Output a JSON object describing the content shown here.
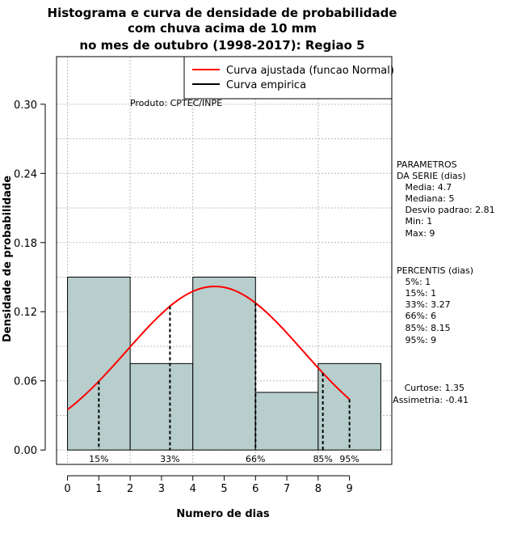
{
  "chart_data": {
    "type": "bar",
    "title_lines": [
      "Histograma e curva de densidade de probabilidade",
      "com chuva acima de 10 mm",
      "no mes de outubro (1998-2017): Regiao 5"
    ],
    "xlabel": "Numero de dias",
    "ylabel": "Densidade de probabilidade",
    "xlim": [
      -0.35,
      10.35
    ],
    "ylim": [
      -0.0125,
      0.3413
    ],
    "x_ticks": [
      0,
      1,
      2,
      3,
      4,
      5,
      6,
      7,
      8,
      9
    ],
    "y_ticks": [
      0.0,
      0.06,
      0.12,
      0.18,
      0.24,
      0.3
    ],
    "y_tick_labels": [
      "0.00",
      "0.06",
      "0.12",
      "0.18",
      "0.24",
      "0.30"
    ],
    "grid": true,
    "bins": [
      {
        "from": 0,
        "to": 2,
        "density": 0.15
      },
      {
        "from": 2,
        "to": 4,
        "density": 0.075
      },
      {
        "from": 4,
        "to": 6,
        "density": 0.15
      },
      {
        "from": 6,
        "to": 8,
        "density": 0.05
      },
      {
        "from": 8,
        "to": 10,
        "density": 0.075
      }
    ],
    "normal_curve": {
      "mean": 4.7,
      "sd": 2.81,
      "x_from": 0,
      "x_to": 9
    },
    "percentile_markers": [
      {
        "label": "15%",
        "x": 1
      },
      {
        "label": "33%",
        "x": 3.27
      },
      {
        "label": "66%",
        "x": 6
      },
      {
        "label": "85%",
        "x": 8.15
      },
      {
        "label": "95%",
        "x": 9
      }
    ],
    "legend": {
      "position": "top-right",
      "entries": [
        {
          "label": "Curva ajustada (funcao Normal)",
          "color": "#ff0000"
        },
        {
          "label": "Curva empirica",
          "color": "#000000"
        }
      ]
    },
    "product_label": "Produto: CPTEC/INPE",
    "params_block": [
      "PARAMETROS",
      "DA SERIE (dias)",
      "   Media: 4.7",
      "   Mediana: 5",
      "   Desvio padrao: 2.81",
      "   Min: 1",
      "   Max: 9"
    ],
    "percentis_block": [
      "PERCENTIS (dias)",
      "   5%: 1",
      "   15%: 1",
      "   33%: 3.27",
      "   66%: 6",
      "   85%: 8.15",
      "   95%: 9"
    ],
    "shape_block": [
      "Curtose: 1.35",
      "Assimetria: -0.41"
    ],
    "colors": {
      "bar_fill": "#b7cecc",
      "bar_stroke": "#000000",
      "curve": "#ff0000",
      "grid": "#bbbbbb"
    }
  }
}
